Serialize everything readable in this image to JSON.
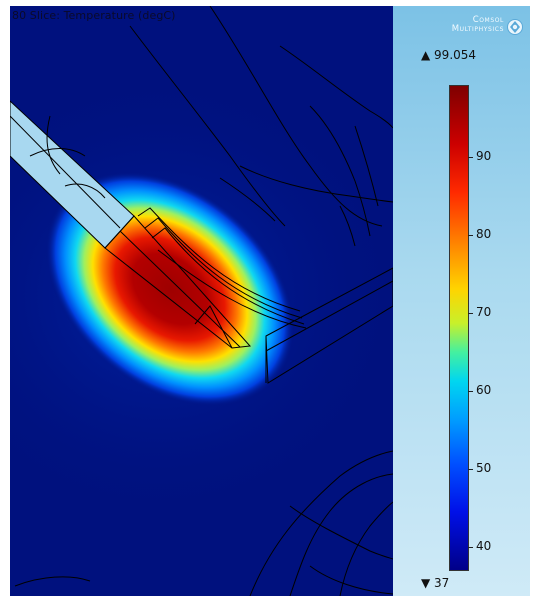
{
  "plot": {
    "title": "80  Slice: Temperature (degC)"
  },
  "logo": {
    "line1": "Comsol",
    "line2": "Multiphysics",
    "icon": "comsol-logo-icon"
  },
  "legend": {
    "max_label": "▲ 99.054",
    "min_label": "▼ 37",
    "max": 99.054,
    "min": 37,
    "ticks": [
      {
        "label": "90",
        "value": 90
      },
      {
        "label": "80",
        "value": 80
      },
      {
        "label": "70",
        "value": 70
      },
      {
        "label": "60",
        "value": 60
      },
      {
        "label": "50",
        "value": 50
      },
      {
        "label": "40",
        "value": 40
      }
    ]
  },
  "colors": {
    "background": "#00117e",
    "hot": "#b30000",
    "probe": "#a8d8f0",
    "panel": "#a9d9ef"
  }
}
